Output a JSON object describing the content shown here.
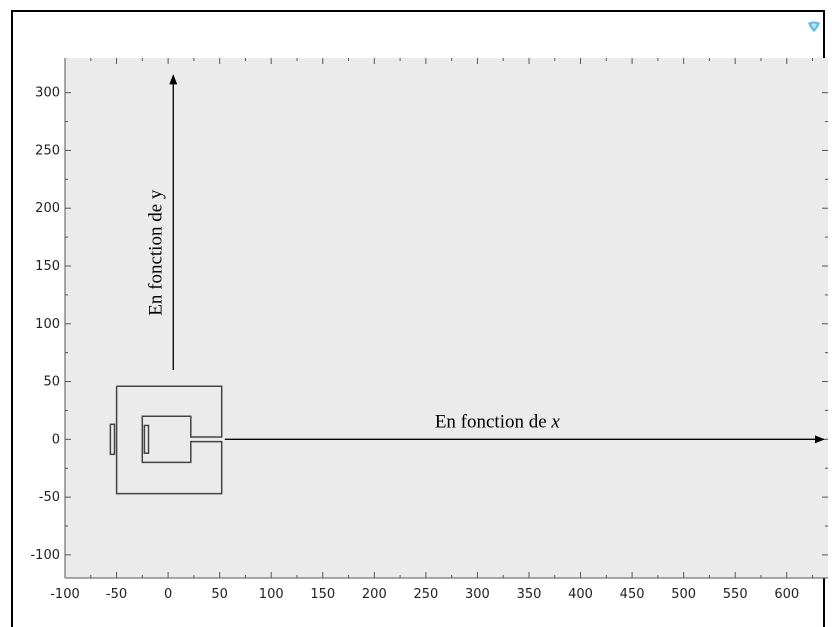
{
  "chart_data": {
    "type": "geometry",
    "xlim": [
      -100,
      640
    ],
    "ylim": [
      -120,
      330
    ],
    "x_ticks": [
      -100,
      -50,
      0,
      50,
      100,
      150,
      200,
      250,
      300,
      350,
      400,
      450,
      500,
      550,
      600
    ],
    "y_ticks": [
      -100,
      -50,
      0,
      50,
      100,
      150,
      200,
      250,
      300
    ],
    "grid": false,
    "background": "#ebebeb",
    "outline": [
      [
        -50,
        46
      ],
      [
        52,
        46
      ],
      [
        52,
        2
      ],
      [
        22,
        2
      ],
      [
        22,
        20
      ],
      [
        -25,
        20
      ],
      [
        -25,
        -20
      ],
      [
        22,
        -20
      ],
      [
        22,
        -2
      ],
      [
        52,
        -2
      ],
      [
        52,
        -47
      ],
      [
        -50,
        -47
      ],
      [
        -50,
        46
      ]
    ],
    "rectangles": [
      {
        "x": [
          -56,
          -52
        ],
        "y": [
          -13,
          13
        ]
      },
      {
        "x": [
          -23,
          -19
        ],
        "y": [
          -12,
          12
        ]
      }
    ],
    "arrows": [
      {
        "from": [
          5,
          60
        ],
        "to": [
          5,
          315
        ],
        "label": "En fonction de y",
        "label_style": "upright"
      },
      {
        "from": [
          55,
          0
        ],
        "to": [
          636,
          0
        ],
        "label_prefix": "En fonction de ",
        "label_var": "x"
      }
    ]
  },
  "colors": {
    "plot_background": "#ebebeb",
    "shape_stroke": "#444444",
    "arrow": "#000000",
    "axis": "#555555"
  },
  "icons": {
    "corner": "comsol-logo-icon"
  }
}
